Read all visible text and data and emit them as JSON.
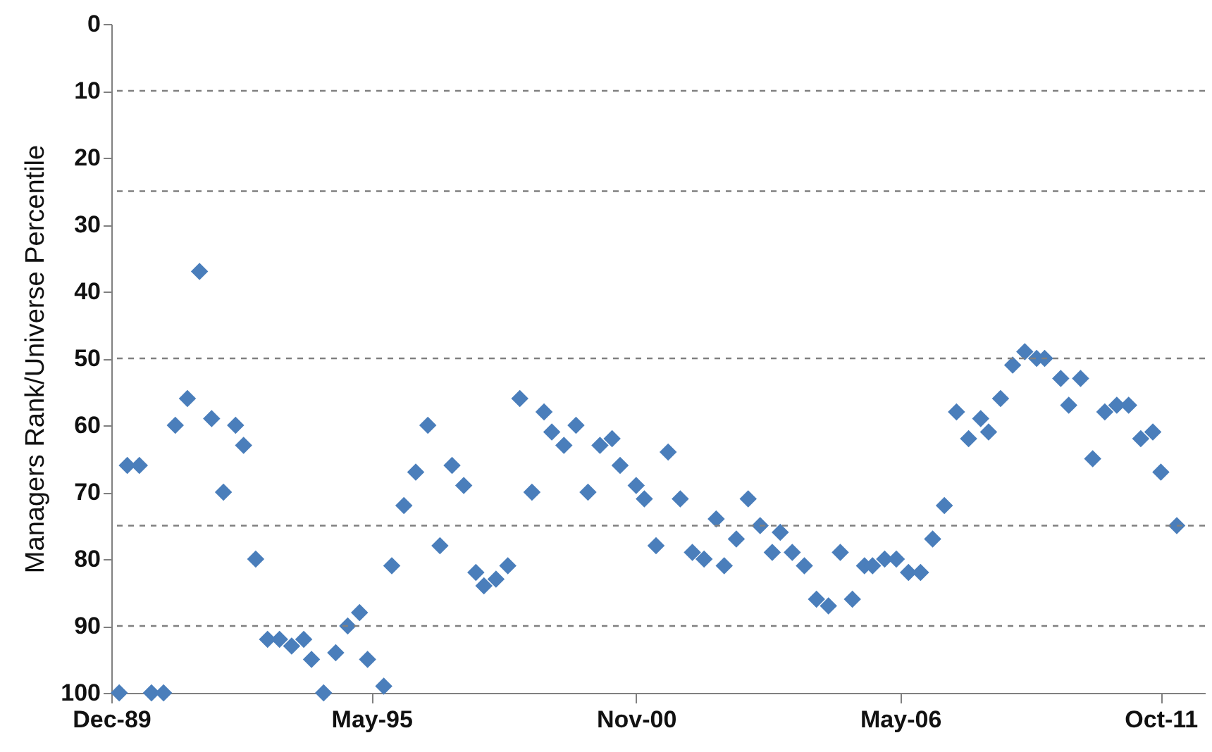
{
  "chart_data": {
    "type": "scatter",
    "ylabel": "Managers Rank/Universe Percentile",
    "marker": "diamond",
    "grid": false,
    "x": [
      "1990-03",
      "1990-05",
      "1990-08",
      "1990-11",
      "1991-02",
      "1991-05",
      "1991-08",
      "1991-11",
      "1992-02",
      "1992-05",
      "1992-08",
      "1992-10",
      "1993-01",
      "1993-04",
      "1993-07",
      "1993-10",
      "1994-01",
      "1994-03",
      "1994-06",
      "1994-09",
      "1994-12",
      "1995-03",
      "1995-05",
      "1995-09",
      "1995-11",
      "1996-02",
      "1996-05",
      "1996-08",
      "1996-11",
      "1997-02",
      "1997-05",
      "1997-08",
      "1997-10",
      "1998-01",
      "1998-04",
      "1998-07",
      "1998-10",
      "1999-01",
      "1999-03",
      "1999-06",
      "1999-09",
      "1999-12",
      "2000-03",
      "2000-06",
      "2000-08",
      "2000-12",
      "2001-02",
      "2001-05",
      "2001-08",
      "2001-11",
      "2002-02",
      "2002-05",
      "2002-08",
      "2002-10",
      "2003-01",
      "2003-04",
      "2003-07",
      "2003-10",
      "2003-12",
      "2004-03",
      "2004-06",
      "2004-09",
      "2004-12",
      "2005-03",
      "2005-06",
      "2005-09",
      "2005-11",
      "2006-02",
      "2006-05",
      "2006-08",
      "2006-11",
      "2007-02",
      "2007-05",
      "2007-08",
      "2007-11",
      "2008-02",
      "2008-04",
      "2008-07",
      "2008-10",
      "2009-01",
      "2009-04",
      "2009-06",
      "2009-10",
      "2009-12",
      "2010-03",
      "2010-06",
      "2010-09",
      "2010-12",
      "2011-03",
      "2011-06",
      "2011-09",
      "2011-11",
      "2012-03"
    ],
    "series": [
      {
        "color": "#4a7ebb",
        "values": [
          100,
          66,
          66,
          100,
          100,
          60,
          56,
          37,
          59,
          70,
          60,
          63,
          80,
          92,
          92,
          93,
          92,
          95,
          100,
          94,
          90,
          88,
          95,
          99,
          81,
          72,
          67,
          60,
          78,
          66,
          69,
          82,
          84,
          83,
          81,
          56,
          70,
          58,
          61,
          63,
          60,
          70,
          63,
          62,
          66,
          69,
          71,
          78,
          64,
          71,
          79,
          80,
          74,
          81,
          77,
          71,
          75,
          79,
          76,
          79,
          81,
          86,
          87,
          79,
          86,
          81,
          81,
          80,
          80,
          82,
          82,
          77,
          72,
          58,
          62,
          59,
          61,
          56,
          51,
          49,
          50,
          50,
          53,
          57,
          53,
          65,
          58,
          57,
          57,
          62,
          61,
          67,
          75
        ]
      }
    ],
    "xlim": [
      "1989-12-31",
      "2012-10"
    ],
    "xticks": [
      {
        "value": "1989-12-31",
        "label": "Dec-89"
      },
      {
        "value": "1995-05-31",
        "label": "May-95"
      },
      {
        "value": "2000-11-30",
        "label": "Nov-00"
      },
      {
        "value": "2006-05-31",
        "label": "May-06"
      },
      {
        "value": "2011-10-31",
        "label": "Oct-11"
      }
    ],
    "ylim": [
      100,
      0
    ],
    "yticks": [
      0,
      10,
      20,
      30,
      40,
      50,
      60,
      70,
      80,
      90,
      100
    ],
    "ref_lines": [
      {
        "axis": "y",
        "value": 10,
        "color": "#808080",
        "line_style": "dashed"
      },
      {
        "axis": "y",
        "value": 25,
        "color": "#808080",
        "line_style": "dashed"
      },
      {
        "axis": "y",
        "value": 50,
        "color": "#808080",
        "line_style": "dashed"
      },
      {
        "axis": "y",
        "value": 75,
        "color": "#808080",
        "line_style": "dashed"
      },
      {
        "axis": "y",
        "value": 90,
        "color": "#808080",
        "line_style": "dashed"
      }
    ]
  }
}
